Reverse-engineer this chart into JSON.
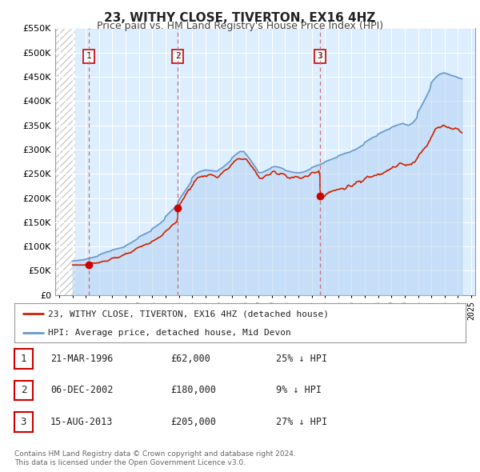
{
  "title": "23, WITHY CLOSE, TIVERTON, EX16 4HZ",
  "subtitle": "Price paid vs. HM Land Registry's House Price Index (HPI)",
  "title_fontsize": 11,
  "subtitle_fontsize": 9,
  "background_color": "#ffffff",
  "plot_bg_color": "#ddeeff",
  "grid_color": "#ffffff",
  "hatch_color": "#bbbbbb",
  "ylim": [
    0,
    550000
  ],
  "xlim_start": 1993.7,
  "xlim_end": 2025.3,
  "hatch_end": 1995.2,
  "yticks": [
    0,
    50000,
    100000,
    150000,
    200000,
    250000,
    300000,
    350000,
    400000,
    450000,
    500000,
    550000
  ],
  "ytick_labels": [
    "£0",
    "£50K",
    "£100K",
    "£150K",
    "£200K",
    "£250K",
    "£300K",
    "£350K",
    "£400K",
    "£450K",
    "£500K",
    "£550K"
  ],
  "xticks": [
    1994,
    1995,
    1996,
    1997,
    1998,
    1999,
    2000,
    2001,
    2002,
    2003,
    2004,
    2005,
    2006,
    2007,
    2008,
    2009,
    2010,
    2011,
    2012,
    2013,
    2014,
    2015,
    2016,
    2017,
    2018,
    2019,
    2020,
    2021,
    2022,
    2023,
    2024,
    2025
  ],
  "hpi_color": "#6699cc",
  "hpi_fill_color": "#aaccee",
  "price_color": "#cc2200",
  "sale_marker_color": "#cc0000",
  "vline_color": "#cc6666",
  "sale_dates": [
    1996.22,
    2002.92,
    2013.62
  ],
  "sale_prices": [
    62000,
    180000,
    205000
  ],
  "sale_labels": [
    "1",
    "2",
    "3"
  ],
  "legend_entries": [
    "23, WITHY CLOSE, TIVERTON, EX16 4HZ (detached house)",
    "HPI: Average price, detached house, Mid Devon"
  ],
  "table_rows": [
    {
      "label": "1",
      "date": "21-MAR-1996",
      "price": "£62,000",
      "hpi": "25% ↓ HPI"
    },
    {
      "label": "2",
      "date": "06-DEC-2002",
      "price": "£180,000",
      "hpi": "9% ↓ HPI"
    },
    {
      "label": "3",
      "date": "15-AUG-2013",
      "price": "£205,000",
      "hpi": "27% ↓ HPI"
    }
  ],
  "footer1": "Contains HM Land Registry data © Crown copyright and database right 2024.",
  "footer2": "This data is licensed under the Open Government Licence v3.0."
}
